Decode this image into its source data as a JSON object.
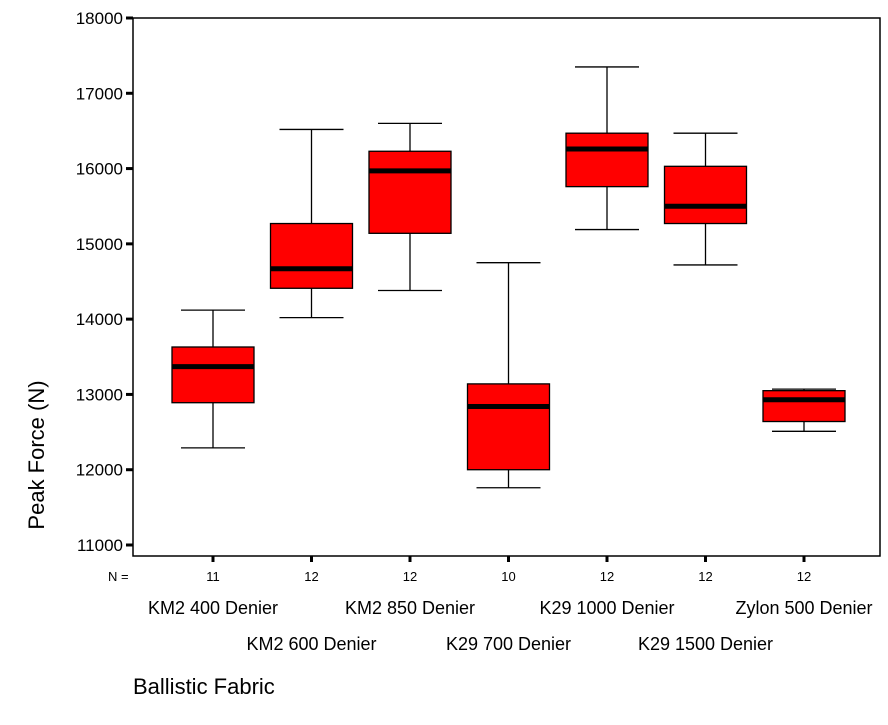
{
  "chart_data": {
    "type": "boxplot",
    "title": "",
    "xlabel": "Ballistic Fabric",
    "ylabel": "Peak Force (N)",
    "ylim": [
      11000,
      18000
    ],
    "yticks": [
      11000,
      12000,
      13000,
      14000,
      15000,
      16000,
      17000,
      18000
    ],
    "n_label": "N =",
    "box_color": "#ff0000",
    "median_color": "#000000",
    "categories": [
      {
        "name": "KM2 400 Denier",
        "n": "11",
        "min": 12290,
        "q1": 12890,
        "median": 13370,
        "q3": 13630,
        "max": 14120
      },
      {
        "name": "KM2 600 Denier",
        "n": "12",
        "min": 14020,
        "q1": 14410,
        "median": 14670,
        "q3": 15270,
        "max": 16520
      },
      {
        "name": "KM2 850 Denier",
        "n": "12",
        "min": 14380,
        "q1": 15140,
        "median": 15970,
        "q3": 16230,
        "max": 16600
      },
      {
        "name": "K29 700 Denier",
        "n": "10",
        "min": 11760,
        "q1": 12000,
        "median": 12840,
        "q3": 13140,
        "max": 14750
      },
      {
        "name": "K29 1000 Denier",
        "n": "12",
        "min": 15190,
        "q1": 15760,
        "median": 16260,
        "q3": 16470,
        "max": 17350
      },
      {
        "name": "K29 1500 Denier",
        "n": "12",
        "min": 14720,
        "q1": 15270,
        "median": 15500,
        "q3": 16030,
        "max": 16470
      },
      {
        "name": "Zylon 500 Denier",
        "n": "12",
        "min": 12510,
        "q1": 12640,
        "median": 12930,
        "q3": 13050,
        "max": 13070
      }
    ]
  }
}
